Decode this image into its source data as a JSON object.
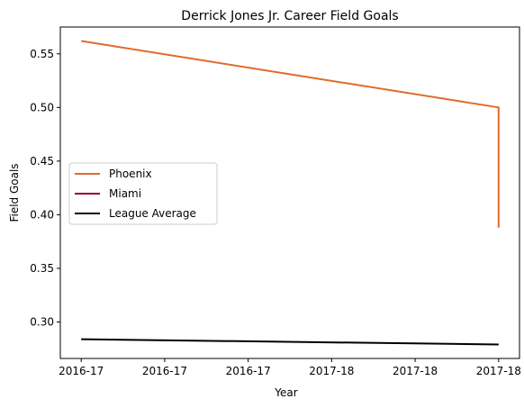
{
  "chart_data": {
    "type": "line",
    "title": "Derrick Jones Jr. Career Field Goals",
    "xlabel": "Year",
    "ylabel": "Field Goals",
    "x_tick_labels": [
      "2016-17",
      "2016-17",
      "2016-17",
      "2017-18",
      "2017-18",
      "2017-18"
    ],
    "x": [
      0,
      1
    ],
    "xlim": [
      -0.05,
      1.05
    ],
    "ylim": [
      0.266,
      0.575
    ],
    "y_ticks": [
      "0.30",
      "0.35",
      "0.40",
      "0.45",
      "0.50",
      "0.55"
    ],
    "grid": false,
    "legend_position": "center-left",
    "series": [
      {
        "name": "Phoenix",
        "color": "#e06a2c",
        "points": [
          [
            0,
            0.562
          ],
          [
            1,
            0.5
          ],
          [
            1,
            0.388
          ]
        ]
      },
      {
        "name": "Miami",
        "color": "#98002e",
        "points": []
      },
      {
        "name": "League Average",
        "color": "#000000",
        "points": [
          [
            0,
            0.284
          ],
          [
            1,
            0.279
          ]
        ]
      }
    ]
  }
}
